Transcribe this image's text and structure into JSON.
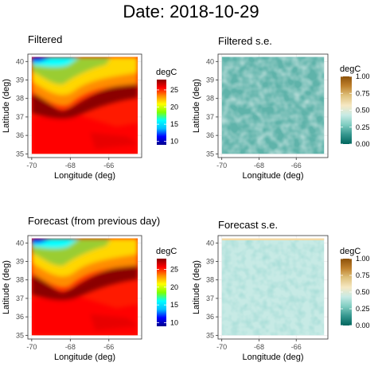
{
  "page_title": "Date: 2018-10-29",
  "chart_data": [
    {
      "type": "heatmap",
      "title": "Filtered",
      "xlabel": "Longitude (deg)",
      "ylabel": "Latitude (deg)",
      "x_ticks": [
        "-70",
        "-68",
        "-66"
      ],
      "y_ticks": [
        "35",
        "36",
        "37",
        "38",
        "39",
        "40"
      ],
      "xlim": [
        -70.2,
        -64.3
      ],
      "ylim": [
        34.8,
        40.4
      ],
      "data_extent": {
        "x": [
          -70,
          -64.5
        ],
        "y": [
          35,
          40.25
        ]
      },
      "palette": "rainbow",
      "legend": {
        "title": "degC",
        "ticks": [
          "10",
          "15",
          "20",
          "25"
        ],
        "range": [
          9,
          28
        ],
        "position": "right"
      },
      "grid": true
    },
    {
      "type": "heatmap",
      "title": "Filtered s.e.",
      "xlabel": "Longitude (deg)",
      "ylabel": "Latitude (deg)",
      "x_ticks": [
        "-70",
        "-68",
        "-66"
      ],
      "y_ticks": [
        "35",
        "36",
        "37",
        "38",
        "39",
        "40"
      ],
      "xlim": [
        -70.2,
        -64.3
      ],
      "ylim": [
        34.8,
        40.4
      ],
      "data_extent": {
        "x": [
          -70,
          -64.5
        ],
        "y": [
          35,
          40.25
        ]
      },
      "palette": "teal-brown diverging",
      "legend": {
        "title": "degC",
        "ticks": [
          "0.00",
          "0.25",
          "0.50",
          "0.75",
          "1.00"
        ],
        "range": [
          0,
          1
        ],
        "position": "right"
      },
      "grid": true
    },
    {
      "type": "heatmap",
      "title": "Forecast (from previous day)",
      "xlabel": "Longitude (deg)",
      "ylabel": "Latitude (deg)",
      "x_ticks": [
        "-70",
        "-68",
        "-66"
      ],
      "y_ticks": [
        "35",
        "36",
        "37",
        "38",
        "39",
        "40"
      ],
      "xlim": [
        -70.2,
        -64.3
      ],
      "ylim": [
        34.8,
        40.4
      ],
      "data_extent": {
        "x": [
          -70,
          -64.5
        ],
        "y": [
          35,
          40.25
        ]
      },
      "palette": "rainbow",
      "legend": {
        "title": "degC",
        "ticks": [
          "10",
          "15",
          "20",
          "25"
        ],
        "range": [
          9,
          28
        ],
        "position": "right"
      },
      "grid": true
    },
    {
      "type": "heatmap",
      "title": "Forecast s.e.",
      "xlabel": "Longitude (deg)",
      "ylabel": "Latitude (deg)",
      "x_ticks": [
        "-70",
        "-68",
        "-66"
      ],
      "y_ticks": [
        "35",
        "36",
        "37",
        "38",
        "39",
        "40"
      ],
      "xlim": [
        -70.2,
        -64.3
      ],
      "ylim": [
        34.8,
        40.4
      ],
      "data_extent": {
        "x": [
          -70,
          -64.5
        ],
        "y": [
          35,
          40.25
        ]
      },
      "palette": "teal-brown diverging",
      "legend": {
        "title": "degC",
        "ticks": [
          "0.00",
          "0.25",
          "0.50",
          "0.75",
          "1.00"
        ],
        "range": [
          0,
          1
        ],
        "position": "right"
      },
      "grid": true
    }
  ],
  "colors": {
    "panel_border": "#333333",
    "grid": "#ebebeb",
    "rainbow_stops": [
      "#00008b",
      "#0000ff",
      "#00bfff",
      "#00ffff",
      "#7fff00",
      "#ffff00",
      "#ff8c00",
      "#ff0000",
      "#8b0000"
    ],
    "se_stops": [
      "#01665e",
      "#35978f",
      "#80cdc1",
      "#c7eae5",
      "#f6e8c3",
      "#dfc27d",
      "#bf812d",
      "#8c510a"
    ]
  }
}
